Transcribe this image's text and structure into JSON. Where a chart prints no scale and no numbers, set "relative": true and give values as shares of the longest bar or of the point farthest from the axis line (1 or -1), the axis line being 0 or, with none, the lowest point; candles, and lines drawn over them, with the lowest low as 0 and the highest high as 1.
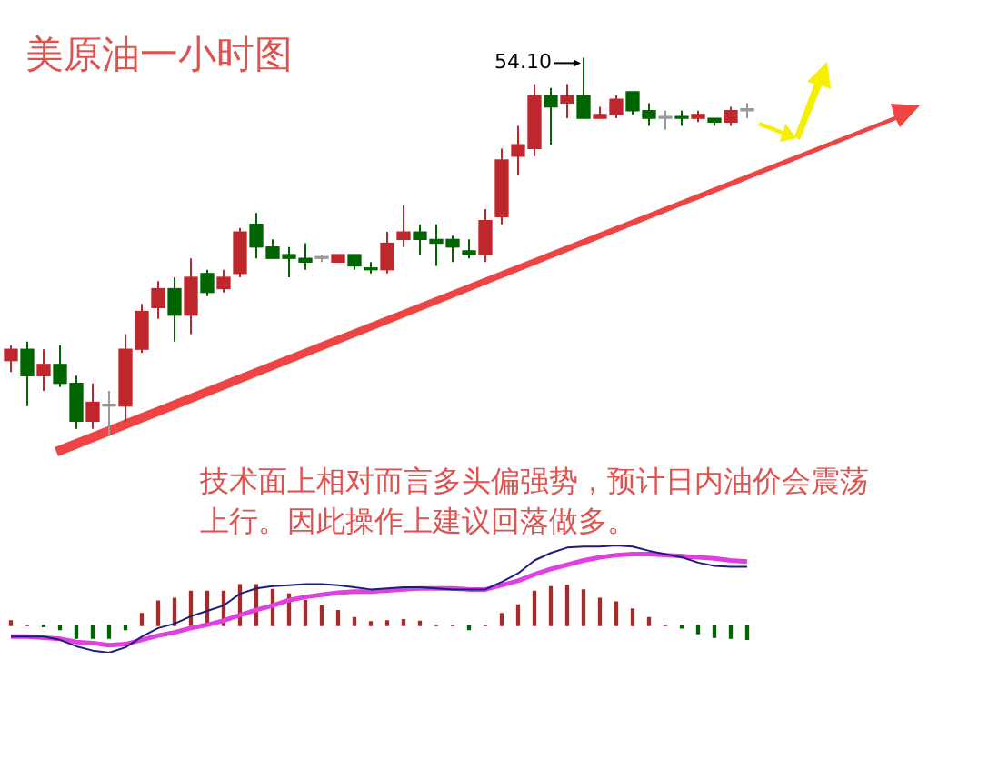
{
  "chart_data": [
    {
      "type": "candlestick",
      "title": "美原油一小时图",
      "relative": true,
      "categories": [
        null,
        null,
        null,
        null,
        null,
        null,
        null,
        null,
        null,
        null,
        null,
        null,
        null,
        null,
        null,
        null,
        null,
        null,
        null,
        null,
        null,
        null,
        null,
        null,
        null,
        null,
        null,
        null,
        null,
        null,
        null,
        null,
        null,
        null,
        null,
        null,
        null,
        null,
        null,
        null,
        null,
        null,
        null,
        null,
        null,
        null
      ],
      "ohlc": [
        [
          0.2,
          0.24,
          0.17,
          0.23
        ],
        [
          0.23,
          0.25,
          0.08,
          0.16
        ],
        [
          0.16,
          0.23,
          0.12,
          0.19
        ],
        [
          0.19,
          0.24,
          0.13,
          0.14
        ],
        [
          0.14,
          0.16,
          0.02,
          0.04
        ],
        [
          0.04,
          0.14,
          0.02,
          0.09
        ],
        [
          0.08,
          0.12,
          0,
          0.08
        ],
        [
          0.08,
          0.27,
          0.04,
          0.23
        ],
        [
          0.23,
          0.35,
          0.22,
          0.33
        ],
        [
          0.34,
          0.41,
          0.31,
          0.39
        ],
        [
          0.39,
          0.42,
          0.25,
          0.32
        ],
        [
          0.32,
          0.47,
          0.27,
          0.42
        ],
        [
          0.43,
          0.44,
          0.37,
          0.38
        ],
        [
          0.39,
          0.44,
          0.38,
          0.42
        ],
        [
          0.43,
          0.55,
          0.42,
          0.54
        ],
        [
          0.56,
          0.59,
          0.47,
          0.5
        ],
        [
          0.5,
          0.52,
          0.47,
          0.47
        ],
        [
          0.48,
          0.5,
          0.42,
          0.47
        ],
        [
          0.47,
          0.51,
          0.44,
          0.46
        ],
        [
          0.47,
          0.48,
          0.46,
          0.47
        ],
        [
          0.46,
          0.48,
          0.46,
          0.48
        ],
        [
          0.48,
          0.48,
          0.44,
          0.45
        ],
        [
          0.44,
          0.46,
          0.43,
          0.44
        ],
        [
          0.44,
          0.54,
          0.43,
          0.51
        ],
        [
          0.52,
          0.61,
          0.5,
          0.54
        ],
        [
          0.54,
          0.56,
          0.48,
          0.52
        ],
        [
          0.52,
          0.56,
          0.45,
          0.51
        ],
        [
          0.52,
          0.53,
          0.46,
          0.5
        ],
        [
          0.49,
          0.52,
          0.47,
          0.48
        ],
        [
          0.48,
          0.6,
          0.46,
          0.57
        ],
        [
          0.58,
          0.76,
          0.56,
          0.73
        ],
        [
          0.74,
          0.82,
          0.69,
          0.77
        ],
        [
          0.76,
          0.93,
          0.74,
          0.9
        ],
        [
          0.9,
          0.92,
          0.77,
          0.87
        ],
        [
          0.88,
          0.93,
          0.84,
          0.9
        ],
        [
          0.9,
          1,
          0.84,
          0.84
        ],
        [
          0.84,
          0.87,
          0.84,
          0.85
        ],
        [
          0.85,
          0.9,
          0.84,
          0.89
        ],
        [
          0.91,
          0.91,
          0.85,
          0.86
        ],
        [
          0.86,
          0.88,
          0.82,
          0.84
        ],
        [
          0.84,
          0.86,
          0.81,
          0.84
        ],
        [
          0.84,
          0.86,
          0.82,
          0.84
        ],
        [
          0.84,
          0.86,
          0.83,
          0.85
        ],
        [
          0.84,
          0.84,
          0.82,
          0.83
        ],
        [
          0.83,
          0.87,
          0.82,
          0.86
        ],
        [
          0.86,
          0.88,
          0.84,
          0.86
        ]
      ],
      "colors": [
        "#c0272d",
        "#006400",
        "#c0272d",
        "#006400",
        "#006400",
        "#c0272d",
        "#999999",
        "#c0272d",
        "#c0272d",
        "#c0272d",
        "#006400",
        "#c0272d",
        "#006400",
        "#c0272d",
        "#c0272d",
        "#006400",
        "#006400",
        "#006400",
        "#006400",
        "#999999",
        "#c0272d",
        "#006400",
        "#006400",
        "#c0272d",
        "#c0272d",
        "#006400",
        "#006400",
        "#006400",
        "#006400",
        "#c0272d",
        "#c0272d",
        "#c0272d",
        "#c0272d",
        "#006400",
        "#c0272d",
        "#006400",
        "#c0272d",
        "#c0272d",
        "#006400",
        "#006400",
        "#999999",
        "#006400",
        "#c0272d",
        "#006400",
        "#c0272d",
        "#999999"
      ],
      "annotations": [
        "技术面上相对而言多头偏强势，预计日内油价会震荡上行。因此操作上建议回落做多。",
        "54.10"
      ]
    },
    {
      "type": "bar",
      "relative": true,
      "categories": [
        null,
        null,
        null,
        null,
        null,
        null,
        null,
        null,
        null,
        null,
        null,
        null,
        null,
        null,
        null,
        null,
        null,
        null,
        null,
        null,
        null,
        null,
        null,
        null,
        null,
        null,
        null,
        null,
        null,
        null,
        null,
        null,
        null,
        null,
        null,
        null,
        null,
        null,
        null,
        null,
        null,
        null,
        null,
        null,
        null,
        null
      ],
      "colors": [
        "#a52a2a",
        "#a52a2a",
        "#006400",
        "#006400",
        "#006400",
        "#006400",
        "#006400",
        "#006400",
        "#a52a2a",
        "#a52a2a",
        "#a52a2a",
        "#a52a2a",
        "#a52a2a",
        "#a52a2a",
        "#a52a2a",
        "#a52a2a",
        "#a52a2a",
        "#a52a2a",
        "#a52a2a",
        "#a52a2a",
        "#a52a2a",
        "#a52a2a",
        "#a52a2a",
        "#a52a2a",
        "#a52a2a",
        "#a52a2a",
        "#a52a2a",
        "#a52a2a",
        "#006400",
        "#a52a2a",
        "#a52a2a",
        "#a52a2a",
        "#a52a2a",
        "#a52a2a",
        "#a52a2a",
        "#a52a2a",
        "#a52a2a",
        "#a52a2a",
        "#a52a2a",
        "#a52a2a",
        "#a52a2a",
        "#006400",
        "#006400",
        "#006400",
        "#006400",
        "#006400"
      ],
      "values": [
        0.11,
        0,
        -0.03,
        -0.1,
        -0.31,
        -0.31,
        -0.31,
        -0.1,
        0.29,
        0.59,
        0.66,
        0.83,
        0.83,
        0.83,
        1,
        1,
        0.87,
        0.76,
        0.61,
        0.47,
        0.36,
        0.19,
        0.09,
        0.11,
        0.14,
        0.1,
        0.01,
        0.01,
        -0.1,
        0.01,
        0.29,
        0.5,
        0.83,
        0.94,
        0.97,
        0.86,
        0.66,
        0.57,
        0.4,
        0.19,
        0.01,
        -0.06,
        -0.2,
        -0.29,
        -0.31,
        -0.34
      ]
    },
    {
      "type": "line",
      "relative": true,
      "marker": "none",
      "categories": [
        null,
        null,
        null,
        null,
        null,
        null,
        null,
        null,
        null,
        null,
        null,
        null,
        null,
        null,
        null,
        null,
        null,
        null,
        null,
        null,
        null,
        null,
        null,
        null,
        null,
        null,
        null,
        null,
        null,
        null,
        null,
        null,
        null,
        null,
        null,
        null,
        null,
        null,
        null,
        null,
        null,
        null,
        null,
        null,
        null,
        null
      ],
      "series": [
        {
          "color": "#1c1c80",
          "values": [
            0.15,
            0.15,
            0.15,
            0.12,
            0.06,
            0.02,
            0,
            0.05,
            0.15,
            0.23,
            0.27,
            0.34,
            0.39,
            0.44,
            0.55,
            0.6,
            0.62,
            0.63,
            0.64,
            0.64,
            0.63,
            0.61,
            0.59,
            0.6,
            0.61,
            0.61,
            0.6,
            0.59,
            0.59,
            0.59,
            0.66,
            0.74,
            0.86,
            0.93,
            0.98,
            0.99,
            0.99,
            1,
            0.99,
            0.95,
            0.92,
            0.89,
            0.84,
            0.81,
            0.8,
            0.8
          ]
        },
        {
          "color": "#e040e0",
          "values": [
            0.15,
            0.15,
            0.14,
            0.13,
            0.1,
            0.09,
            0.07,
            0.08,
            0.12,
            0.16,
            0.19,
            0.23,
            0.26,
            0.3,
            0.35,
            0.4,
            0.44,
            0.49,
            0.52,
            0.54,
            0.56,
            0.57,
            0.57,
            0.58,
            0.59,
            0.6,
            0.6,
            0.6,
            0.59,
            0.59,
            0.63,
            0.67,
            0.73,
            0.78,
            0.82,
            0.86,
            0.89,
            0.91,
            0.92,
            0.92,
            0.91,
            0.9,
            0.89,
            0.88,
            0.86,
            0.85
          ]
        }
      ]
    }
  ]
}
